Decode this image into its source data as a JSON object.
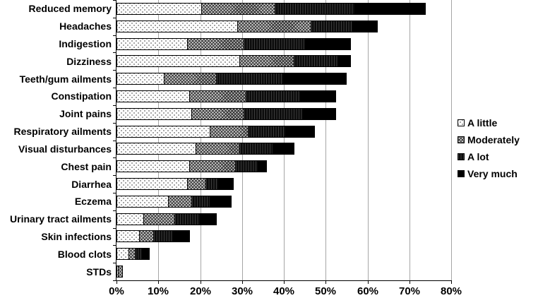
{
  "chart_data": {
    "type": "bar",
    "orientation": "horizontal",
    "stacked": true,
    "title": "",
    "xlabel": "",
    "ylabel": "",
    "xlim": [
      0,
      80
    ],
    "x_tick_labels": [
      "0%",
      "10%",
      "20%",
      "30%",
      "40%",
      "50%",
      "60%",
      "70%",
      "80%"
    ],
    "grid": "vertical-major",
    "legend_position": "right",
    "categories": [
      "Reduced memory",
      "Headaches",
      "Indigestion",
      "Dizziness",
      "Teeth/gum ailments",
      "Constipation",
      "Joint pains",
      "Respiratory ailments",
      "Visual disturbances",
      "Chest pain",
      "Diarrhea",
      "Eczema",
      "Urinary tract ailments",
      "Skin infections",
      "Blood clots",
      "STDs"
    ],
    "series": [
      {
        "name": "A little",
        "pattern": "white-dotted",
        "values": [
          20.5,
          29,
          17,
          29.5,
          11.5,
          17.5,
          18,
          22.5,
          19,
          17.5,
          17,
          12.5,
          6.5,
          5.5,
          3,
          0.5
        ]
      },
      {
        "name": "Moderately",
        "pattern": "gray-crosshatch",
        "values": [
          17.5,
          17.5,
          13.5,
          13,
          12.5,
          13.5,
          12.5,
          9,
          10.5,
          11,
          4.5,
          5.5,
          7.5,
          3.5,
          1.5,
          1
        ]
      },
      {
        "name": "A lot",
        "pattern": "black-vertical-stripes",
        "values": [
          19,
          10,
          14.5,
          10.5,
          16,
          13,
          14,
          9,
          8,
          5.5,
          3,
          4.5,
          6,
          4.5,
          1.5,
          0
        ]
      },
      {
        "name": "Very much",
        "pattern": "black-solid",
        "values": [
          17,
          6,
          11,
          3,
          15,
          8.5,
          8,
          7,
          5,
          2,
          3.5,
          5,
          4,
          4,
          2,
          0
        ]
      }
    ],
    "totals_percent": [
      74,
      62.5,
      56,
      56,
      55,
      52.5,
      52.5,
      47.5,
      42.5,
      36,
      28,
      27.5,
      24,
      17.5,
      8,
      1.5
    ],
    "colors": {
      "background": "#ffffff",
      "axis": "#000000",
      "gridline": "#a6a6a6",
      "bar_border": "#000000",
      "text": "#000000"
    }
  }
}
